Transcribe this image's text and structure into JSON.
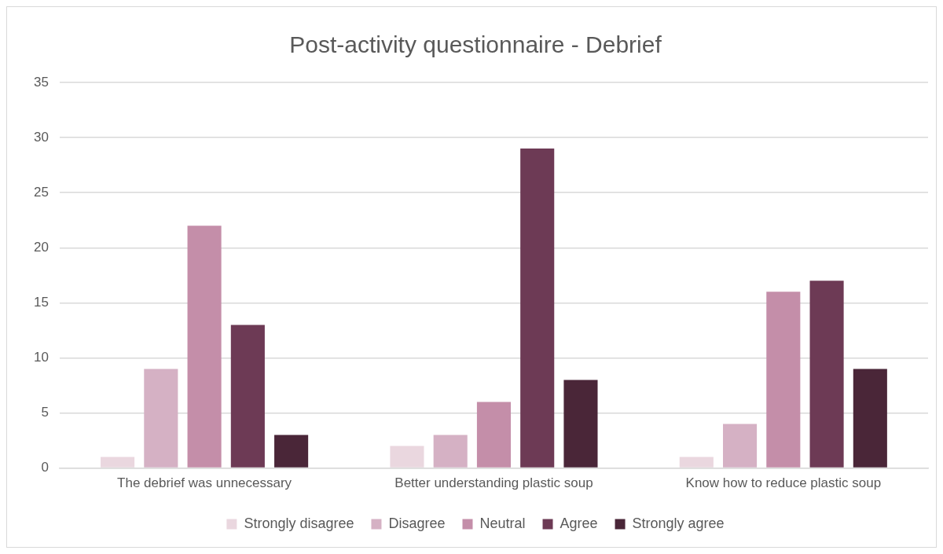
{
  "chart_data": {
    "type": "bar",
    "title": "Post-activity questionnaire - Debrief",
    "categories": [
      "The debrief was unnecessary",
      "Better understanding plastic soup",
      "Know how to reduce plastic soup"
    ],
    "series": [
      {
        "name": "Strongly disagree",
        "color": "#ead7df",
        "values": [
          1,
          2,
          1
        ]
      },
      {
        "name": "Disagree",
        "color": "#d5b1c4",
        "values": [
          9,
          3,
          4
        ]
      },
      {
        "name": "Neutral",
        "color": "#c48ea9",
        "values": [
          22,
          6,
          16
        ]
      },
      {
        "name": "Agree",
        "color": "#6d3a55",
        "values": [
          13,
          29,
          17
        ]
      },
      {
        "name": "Strongly agree",
        "color": "#4a2638",
        "values": [
          3,
          8,
          9
        ]
      }
    ],
    "ylim": [
      0,
      35
    ],
    "yticks": [
      0,
      5,
      10,
      15,
      20,
      25,
      30,
      35
    ],
    "grid": "y",
    "legend": "bottom"
  }
}
